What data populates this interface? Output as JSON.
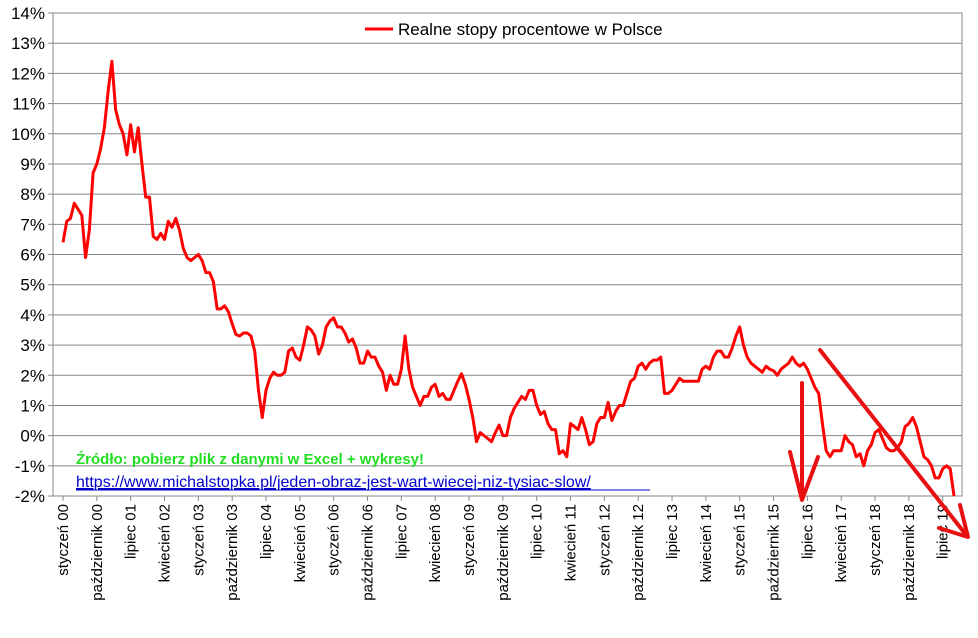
{
  "chart_data": {
    "type": "line",
    "title": "",
    "xlabel": "",
    "ylabel": "",
    "ylim": [
      -2,
      14
    ],
    "y_tick_labels": [
      "-2%",
      "-1%",
      "0%",
      "1%",
      "2%",
      "3%",
      "4%",
      "5%",
      "6%",
      "7%",
      "8%",
      "9%",
      "10%",
      "11%",
      "12%",
      "13%",
      "14%"
    ],
    "y_tick_values": [
      -2,
      -1,
      0,
      1,
      2,
      3,
      4,
      5,
      6,
      7,
      8,
      9,
      10,
      11,
      12,
      13,
      14
    ],
    "x_tick_labels": [
      {
        "label": "styczeń 00",
        "index": 0
      },
      {
        "label": "październik 00",
        "index": 9
      },
      {
        "label": "lipiec 01",
        "index": 18
      },
      {
        "label": "kwiecień 02",
        "index": 27
      },
      {
        "label": "styczeń 03",
        "index": 36
      },
      {
        "label": "październik 03",
        "index": 45
      },
      {
        "label": "lipiec 04",
        "index": 54
      },
      {
        "label": "kwiecień 05",
        "index": 63
      },
      {
        "label": "styczeń 06",
        "index": 72
      },
      {
        "label": "październik 06",
        "index": 81
      },
      {
        "label": "lipiec 07",
        "index": 90
      },
      {
        "label": "kwiecień 08",
        "index": 99
      },
      {
        "label": "styczeń 09",
        "index": 108
      },
      {
        "label": "październik 09",
        "index": 117
      },
      {
        "label": "lipiec 10",
        "index": 126
      },
      {
        "label": "kwiecień 11",
        "index": 135
      },
      {
        "label": "styczeń 12",
        "index": 144
      },
      {
        "label": "październik 12",
        "index": 153
      },
      {
        "label": "lipiec 13",
        "index": 162
      },
      {
        "label": "kwiecień 14",
        "index": 171
      },
      {
        "label": "styczeń 15",
        "index": 180
      },
      {
        "label": "październik 15",
        "index": 189
      },
      {
        "label": "lipiec 16",
        "index": 198
      },
      {
        "label": "kwiecień 17",
        "index": 207
      },
      {
        "label": "styczeń 18",
        "index": 216
      },
      {
        "label": "październik 18",
        "index": 225
      },
      {
        "label": "lipiec 19",
        "index": 234
      }
    ],
    "series": [
      {
        "name": "Realne stopy procentowe w Polsce",
        "color": "#ff0000",
        "values": [
          6.4,
          7.1,
          7.2,
          7.7,
          7.5,
          7.3,
          5.9,
          6.8,
          8.7,
          9.0,
          9.5,
          10.2,
          11.4,
          12.4,
          10.8,
          10.3,
          10.0,
          9.3,
          10.3,
          9.4,
          10.2,
          9.0,
          7.9,
          7.9,
          6.6,
          6.5,
          6.7,
          6.5,
          7.1,
          6.9,
          7.2,
          6.8,
          6.2,
          5.9,
          5.8,
          5.9,
          6.0,
          5.8,
          5.4,
          5.4,
          5.1,
          4.2,
          4.2,
          4.3,
          4.1,
          3.7,
          3.35,
          3.3,
          3.4,
          3.4,
          3.3,
          2.8,
          1.5,
          0.6,
          1.5,
          1.9,
          2.1,
          2.0,
          2.0,
          2.1,
          2.8,
          2.9,
          2.6,
          2.5,
          3.0,
          3.6,
          3.5,
          3.3,
          2.7,
          3.0,
          3.6,
          3.8,
          3.9,
          3.6,
          3.6,
          3.4,
          3.1,
          3.2,
          2.9,
          2.4,
          2.4,
          2.8,
          2.6,
          2.6,
          2.3,
          2.1,
          1.5,
          2.0,
          1.7,
          1.7,
          2.2,
          3.3,
          2.2,
          1.6,
          1.3,
          1.0,
          1.3,
          1.3,
          1.6,
          1.7,
          1.3,
          1.4,
          1.2,
          1.2,
          1.5,
          1.8,
          2.05,
          1.7,
          1.2,
          0.6,
          -0.2,
          0.1,
          0.0,
          -0.1,
          -0.2,
          0.1,
          0.35,
          0.0,
          0.0,
          0.6,
          0.9,
          1.1,
          1.3,
          1.2,
          1.5,
          1.5,
          1.0,
          0.7,
          0.8,
          0.4,
          0.2,
          0.2,
          -0.6,
          -0.5,
          -0.7,
          0.4,
          0.3,
          0.2,
          0.6,
          0.2,
          -0.3,
          -0.2,
          0.4,
          0.6,
          0.6,
          1.1,
          0.5,
          0.8,
          1.0,
          1.0,
          1.4,
          1.8,
          1.9,
          2.3,
          2.4,
          2.2,
          2.4,
          2.5,
          2.5,
          2.6,
          1.4,
          1.4,
          1.5,
          1.7,
          1.9,
          1.8,
          1.8,
          1.8,
          1.8,
          1.8,
          2.2,
          2.3,
          2.2,
          2.6,
          2.8,
          2.8,
          2.6,
          2.6,
          2.9,
          3.3,
          3.6,
          3.0,
          2.6,
          2.4,
          2.3,
          2.2,
          2.1,
          2.3,
          2.2,
          2.15,
          2.0,
          2.2,
          2.3,
          2.4,
          2.6,
          2.4,
          2.3,
          2.4,
          2.2,
          1.9,
          1.6,
          1.4,
          0.4,
          -0.5,
          -0.7,
          -0.5,
          -0.5,
          -0.5,
          0.0,
          -0.2,
          -0.3,
          -0.7,
          -0.6,
          -1.0,
          -0.5,
          -0.3,
          0.1,
          0.2,
          -0.1,
          -0.4,
          -0.5,
          -0.5,
          -0.4,
          -0.2,
          0.3,
          0.4,
          0.6,
          0.3,
          -0.2,
          -0.7,
          -0.8,
          -1.0,
          -1.4,
          -1.4,
          -1.1,
          -1.0,
          -1.1,
          -2.0
        ]
      }
    ],
    "grid": true,
    "legend_position": "top",
    "annotations": {
      "source_text": "Źródło: pobierz plik z danymi w Excel + wykresy!",
      "source_url": "https://www.michalstopka.pl/jeden-obraz-jest-wart-wiecej-niz-tysiac-slow/",
      "arrow_color": "#e81010"
    }
  }
}
